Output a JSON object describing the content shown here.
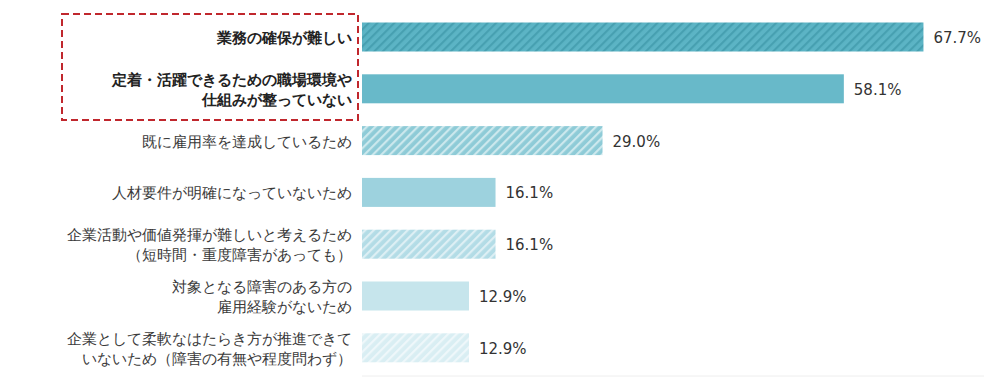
{
  "chart_data": {
    "type": "bar",
    "orientation": "horizontal",
    "categories": [
      "業務の確保が難しい",
      "定着・活躍できるための職場環境や\n仕組みが整っていない",
      "既に雇用率を達成しているため",
      "人材要件が明確になっていないため",
      "企業活動や価値発揮が難しいと考えるため\n（短時間・重度障害があっても）",
      "対象となる障害のある方の\n雇用経験がないため",
      "企業として柔軟なはたらき方が推進できて\nいないため（障害の有無や程度問わず）"
    ],
    "values": [
      67.7,
      58.1,
      29.0,
      16.1,
      16.1,
      12.9,
      12.9
    ],
    "value_labels": [
      "67.7%",
      "58.1%",
      "29.0%",
      "16.1%",
      "16.1%",
      "12.9%",
      "12.9%"
    ],
    "colors": [
      "#5cb4c5",
      "#68b9c9",
      "#8ecbd7",
      "#9dd2de",
      "#b3dce6",
      "#c6e5ec",
      "#d9eef3"
    ],
    "data_labels": true,
    "tick_labels": "y",
    "grid": false,
    "xlim": [
      0,
      75
    ]
  }
}
